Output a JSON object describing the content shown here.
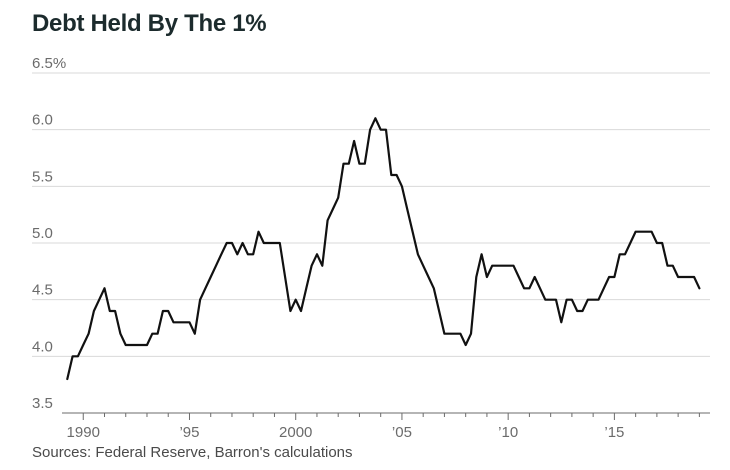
{
  "title": "Debt Held By The 1%",
  "source": "Sources: Federal Reserve, Barron's calculations",
  "colors": {
    "line": "#111111",
    "grid": "#d9d9d9",
    "axis": "#6b6b6b",
    "text": "#1c2b2d"
  },
  "chart_data": {
    "type": "line",
    "title": "Debt Held By The 1%",
    "xlabel": "",
    "ylabel": "",
    "xlim": [
      1989.0,
      2019.5
    ],
    "ylim": [
      3.5,
      6.5
    ],
    "grid": true,
    "y_ticks": [
      {
        "value": 6.5,
        "label": "6.5%"
      },
      {
        "value": 6.0,
        "label": "6.0"
      },
      {
        "value": 5.5,
        "label": "5.5"
      },
      {
        "value": 5.0,
        "label": "5.0"
      },
      {
        "value": 4.5,
        "label": "4.5"
      },
      {
        "value": 4.0,
        "label": "4.0"
      },
      {
        "value": 3.5,
        "label": "3.5"
      }
    ],
    "x_ticks": [
      {
        "value": 1990,
        "label": "1990"
      },
      {
        "value": 1995,
        "label": "’95"
      },
      {
        "value": 2000,
        "label": "2000"
      },
      {
        "value": 2005,
        "label": "’05"
      },
      {
        "value": 2010,
        "label": "’10"
      },
      {
        "value": 2015,
        "label": "’15"
      }
    ],
    "series": [
      {
        "name": "Debt held by the 1%",
        "x": [
          1989.25,
          1989.5,
          1989.75,
          1990.0,
          1990.25,
          1990.5,
          1990.75,
          1991.0,
          1991.25,
          1991.5,
          1991.75,
          1992.0,
          1992.25,
          1992.5,
          1992.75,
          1993.0,
          1993.25,
          1993.5,
          1993.75,
          1994.0,
          1994.25,
          1994.5,
          1994.75,
          1995.0,
          1995.25,
          1995.5,
          1995.75,
          1996.0,
          1996.25,
          1996.5,
          1996.75,
          1997.0,
          1997.25,
          1997.5,
          1997.75,
          1998.0,
          1998.25,
          1998.5,
          1998.75,
          1999.0,
          1999.25,
          1999.5,
          1999.75,
          2000.0,
          2000.25,
          2000.5,
          2000.75,
          2001.0,
          2001.25,
          2001.5,
          2001.75,
          2002.0,
          2002.25,
          2002.5,
          2002.75,
          2003.0,
          2003.25,
          2003.5,
          2003.75,
          2004.0,
          2004.25,
          2004.5,
          2004.75,
          2005.0,
          2005.25,
          2005.5,
          2005.75,
          2006.0,
          2006.25,
          2006.5,
          2006.75,
          2007.0,
          2007.25,
          2007.5,
          2007.75,
          2008.0,
          2008.25,
          2008.5,
          2008.75,
          2009.0,
          2009.25,
          2009.5,
          2009.75,
          2010.0,
          2010.25,
          2010.5,
          2010.75,
          2011.0,
          2011.25,
          2011.5,
          2011.75,
          2012.0,
          2012.25,
          2012.5,
          2012.75,
          2013.0,
          2013.25,
          2013.5,
          2013.75,
          2014.0,
          2014.25,
          2014.5,
          2014.75,
          2015.0,
          2015.25,
          2015.5,
          2015.75,
          2016.0,
          2016.25,
          2016.5,
          2016.75,
          2017.0,
          2017.25,
          2017.5,
          2017.75,
          2018.0,
          2018.25,
          2018.5,
          2018.75,
          2019.0
        ],
        "y": [
          3.8,
          4.0,
          4.0,
          4.1,
          4.2,
          4.4,
          4.5,
          4.6,
          4.4,
          4.4,
          4.2,
          4.1,
          4.1,
          4.1,
          4.1,
          4.1,
          4.2,
          4.2,
          4.4,
          4.4,
          4.3,
          4.3,
          4.3,
          4.3,
          4.2,
          4.5,
          4.6,
          4.7,
          4.8,
          4.9,
          5.0,
          5.0,
          4.9,
          5.0,
          4.9,
          4.9,
          5.1,
          5.0,
          5.0,
          5.0,
          5.0,
          4.7,
          4.4,
          4.5,
          4.4,
          4.6,
          4.8,
          4.9,
          4.8,
          5.2,
          5.3,
          5.4,
          5.7,
          5.7,
          5.9,
          5.7,
          5.7,
          6.0,
          6.1,
          6.0,
          6.0,
          5.6,
          5.6,
          5.5,
          5.3,
          5.1,
          4.9,
          4.8,
          4.7,
          4.6,
          4.4,
          4.2,
          4.2,
          4.2,
          4.2,
          4.1,
          4.2,
          4.7,
          4.9,
          4.7,
          4.8,
          4.8,
          4.8,
          4.8,
          4.8,
          4.7,
          4.6,
          4.6,
          4.7,
          4.6,
          4.5,
          4.5,
          4.5,
          4.3,
          4.5,
          4.5,
          4.4,
          4.4,
          4.5,
          4.5,
          4.5,
          4.6,
          4.7,
          4.7,
          4.9,
          4.9,
          5.0,
          5.1,
          5.1,
          5.1,
          5.1,
          5.0,
          5.0,
          4.8,
          4.8,
          4.7,
          4.7,
          4.7,
          4.7,
          4.6
        ]
      }
    ]
  }
}
